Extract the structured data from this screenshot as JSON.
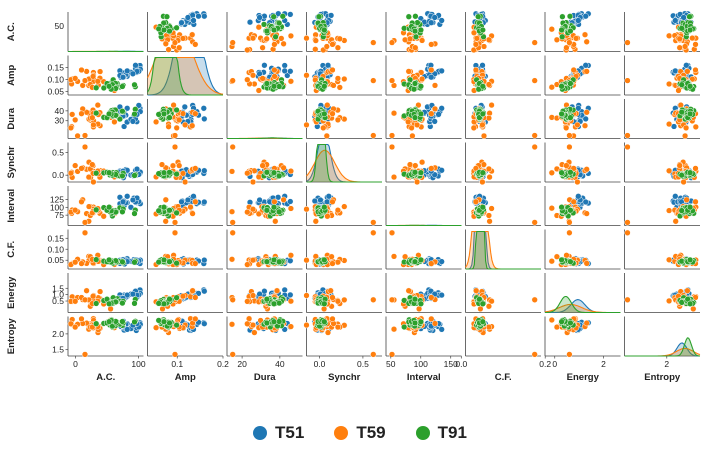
{
  "chart_data": {
    "type": "scatter",
    "subtype": "pairplot",
    "variables": [
      "A.C.",
      "Amp",
      "Dura",
      "Synchr",
      "Interval",
      "C.F.",
      "Energy",
      "Entropy"
    ],
    "axis_ranges": {
      "A.C.": [
        -12,
        108
      ],
      "Amp": [
        0.035,
        0.2
      ],
      "Dura": [
        12,
        52
      ],
      "Synchr": [
        -0.15,
        0.72
      ],
      "Interval": [
        42,
        168
      ],
      "C.F.": [
        0.01,
        0.19
      ],
      "Energy": [
        -0.4,
        2.7
      ],
      "Entropy": [
        1.3,
        2.55
      ]
    },
    "ticks": {
      "A.C.": [
        0,
        50,
        100
      ],
      "Amp": [
        0.05,
        0.1,
        0.15
      ],
      "Dura": [
        30,
        40
      ],
      "Synchr": [
        0.0,
        0.5
      ],
      "Interval": [
        75,
        100,
        125
      ],
      "C.F.": [
        0.05,
        0.1,
        0.15
      ],
      "Energy": [
        0.5,
        1.0,
        1.5
      ],
      "Entropy": [
        1.5,
        2.0
      ]
    },
    "tick_labels": {
      "A.C.": [
        "0",
        "50",
        "100"
      ],
      "Amp": [
        "0.05",
        "0.10",
        "0.15"
      ],
      "Dura": [
        "30",
        "40"
      ],
      "Synchr": [
        "0.0",
        "0.5"
      ],
      "Interval": [
        "75",
        "100",
        "125"
      ],
      "C.F.": [
        "0.05",
        "0.10",
        "0.15"
      ],
      "Energy": [
        "0.5",
        "1.0",
        "1.5"
      ],
      "Entropy": [
        "1.5",
        "2.0"
      ]
    },
    "x_ticks": {
      "A.C.": [
        0,
        100
      ],
      "Amp": [
        0.1,
        0.2
      ],
      "Dura": [
        20,
        40
      ],
      "Synchr": [
        0.0,
        0.5
      ],
      "Interval": [
        50,
        100,
        150
      ],
      "C.F.": [
        0.0,
        0.2
      ],
      "Energy": [
        0,
        2
      ],
      "Entropy": [
        2
      ]
    },
    "x_tick_labels": {
      "A.C.": [
        "0",
        "100"
      ],
      "Amp": [
        "0.1",
        "0.2"
      ],
      "Dura": [
        "20",
        "40"
      ],
      "Synchr": [
        "0.0",
        "0.5"
      ],
      "Interval": [
        "50",
        "100",
        "150"
      ],
      "C.F.": [
        "0.0",
        "0.2"
      ],
      "Energy": [
        "0",
        "2"
      ],
      "Entropy": [
        "2"
      ]
    },
    "density_max": {
      "A.C.": 80,
      "Amp": 0.115,
      "Dura": 33,
      "Synchr": 0.45,
      "Interval": 113,
      "C.F.": 0.17,
      "Energy": 1.58,
      "Entropy": 2.25
    },
    "series": [
      {
        "name": "T51",
        "color": "#1f77b4",
        "mean": {
          "A.C.": 85,
          "Amp": 0.125,
          "Dura": 36,
          "Synchr": 0.05,
          "Interval": 118,
          "C.F.": 0.045,
          "Energy": 0.95,
          "Entropy": 2.25
        },
        "std": {
          "A.C.": 12,
          "Amp": 0.02,
          "Dura": 4.5,
          "Synchr": 0.06,
          "Interval": 9,
          "C.F.": 0.006,
          "Energy": 0.25,
          "Entropy": 0.07
        },
        "count": 22
      },
      {
        "name": "T59",
        "color": "#ff7f0e",
        "mean": {
          "A.C.": 25,
          "Amp": 0.095,
          "Dura": 32,
          "Synchr": 0.06,
          "Interval": 85,
          "C.F.": 0.045,
          "Energy": 0.65,
          "Entropy": 2.3
        },
        "std": {
          "A.C.": 18,
          "Amp": 0.03,
          "Dura": 6,
          "Synchr": 0.1,
          "Interval": 14,
          "C.F.": 0.01,
          "Energy": 0.4,
          "Entropy": 0.12
        },
        "count": 26
      },
      {
        "name": "T91",
        "color": "#2ca02c",
        "mean": {
          "A.C.": 60,
          "Amp": 0.075,
          "Dura": 36,
          "Synchr": 0.02,
          "Interval": 90,
          "C.F.": 0.045,
          "Energy": 0.45,
          "Entropy": 2.35
        },
        "std": {
          "A.C.": 15,
          "Amp": 0.012,
          "Dura": 3,
          "Synchr": 0.03,
          "Interval": 8,
          "C.F.": 0.004,
          "Energy": 0.2,
          "Entropy": 0.05
        },
        "count": 24
      }
    ],
    "outliers": [
      {
        "series": "T59",
        "values": {
          "A.C.": 15,
          "Amp": 0.095,
          "Dura": 15,
          "Synchr": 0.62,
          "Interval": 52,
          "C.F.": 0.175,
          "Energy": 0.6,
          "Entropy": 1.35
        }
      }
    ],
    "legend": {
      "placement": "bottom-center",
      "entries": [
        "T51",
        "T59",
        "T91"
      ]
    },
    "grid": false
  }
}
